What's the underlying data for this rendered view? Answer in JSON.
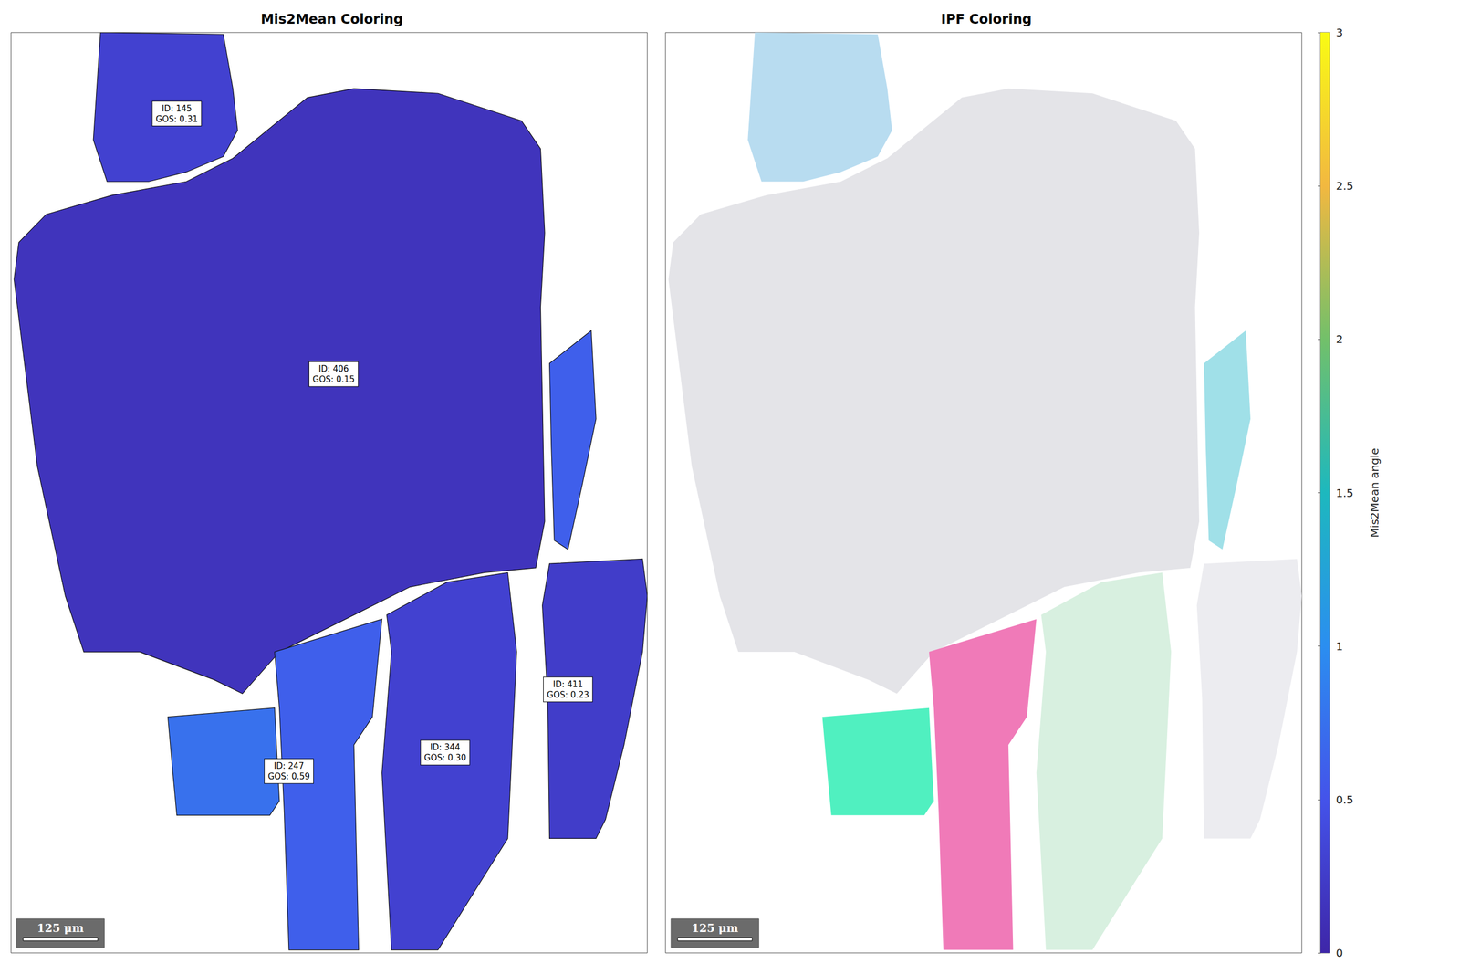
{
  "chart_data": {
    "type": "grain_map",
    "tick_labels": false,
    "xlim": [
      0,
      1067
    ],
    "ylim": [
      0,
      1544
    ],
    "panels": [
      {
        "title": "Mis2Mean Coloring",
        "coloring": "mis2mean"
      },
      {
        "title": "IPF Coloring",
        "coloring": "ipf"
      }
    ],
    "scale_bar": {
      "label": "125 μm",
      "length": 125
    },
    "colorbar": {
      "label": "Mis2Mean angle",
      "lim": [
        0,
        3
      ],
      "ticks": [
        0,
        0.5,
        1,
        1.5,
        2,
        2.5,
        3
      ]
    },
    "grains": [
      {
        "label": "ID: 145\nGOS: 0.31",
        "label_xy": [
          278,
          136
        ],
        "mis2mean": 0.3,
        "ipf_color": "#b8dcf0",
        "outline": [
          [
            150,
            0
          ],
          [
            356,
            3
          ],
          [
            372,
            94
          ],
          [
            380,
            164
          ],
          [
            356,
            208
          ],
          [
            294,
            234
          ],
          [
            231,
            250
          ],
          [
            161,
            250
          ],
          [
            138,
            180
          ]
        ]
      },
      {
        "label": "ID: 406\nGOS: 0.15",
        "label_xy": [
          541,
          573
        ],
        "mis2mean": 0.15,
        "ipf_color": "#e4e4e8",
        "outline": [
          [
            372,
            211
          ],
          [
            497,
            109
          ],
          [
            575,
            94
          ],
          [
            716,
            102
          ],
          [
            856,
            148
          ],
          [
            888,
            195
          ],
          [
            895,
            336
          ],
          [
            888,
            461
          ],
          [
            895,
            820
          ],
          [
            880,
            898
          ],
          [
            794,
            906
          ],
          [
            669,
            930
          ],
          [
            575,
            977
          ],
          [
            450,
            1039
          ],
          [
            388,
            1109
          ],
          [
            341,
            1086
          ],
          [
            216,
            1039
          ],
          [
            122,
            1039
          ],
          [
            91,
            945
          ],
          [
            44,
            727
          ],
          [
            5,
            414
          ],
          [
            13,
            352
          ],
          [
            59,
            305
          ],
          [
            169,
            273
          ],
          [
            294,
            250
          ]
        ]
      },
      {
        "label": null,
        "label_xy": null,
        "mis2mean": 0.6,
        "ipf_color": "#a0e0e8",
        "outline": [
          [
            903,
            555
          ],
          [
            973,
            500
          ],
          [
            981,
            648
          ],
          [
            958,
            758
          ],
          [
            934,
            867
          ],
          [
            911,
            852
          ],
          [
            906,
            695
          ]
        ]
      },
      {
        "label": null,
        "label_xy": null,
        "mis2mean": 0.75,
        "ipf_color": "#50f0c0",
        "outline": [
          [
            263,
            1148
          ],
          [
            442,
            1133
          ],
          [
            450,
            1289
          ],
          [
            434,
            1313
          ],
          [
            278,
            1313
          ],
          [
            270,
            1227
          ]
        ]
      },
      {
        "label": "ID: 247\nGOS: 0.59",
        "label_xy": [
          466,
          1239
        ],
        "mis2mean": 0.6,
        "ipf_color": "#f07ab8",
        "outline": [
          [
            442,
            1039
          ],
          [
            622,
            984
          ],
          [
            606,
            1148
          ],
          [
            575,
            1195
          ],
          [
            583,
            1539
          ],
          [
            466,
            1539
          ],
          [
            458,
            1305
          ],
          [
            450,
            1133
          ]
        ]
      },
      {
        "label": "ID: 344\nGOS: 0.30",
        "label_xy": [
          728,
          1208
        ],
        "mis2mean": 0.3,
        "ipf_color": "#d8f0e0",
        "outline": [
          [
            630,
            977
          ],
          [
            731,
            922
          ],
          [
            833,
            906
          ],
          [
            848,
            1039
          ],
          [
            833,
            1352
          ],
          [
            794,
            1414
          ],
          [
            716,
            1539
          ],
          [
            638,
            1539
          ],
          [
            622,
            1242
          ],
          [
            638,
            1039
          ]
        ]
      },
      {
        "label": "ID: 411\nGOS: 0.23",
        "label_xy": [
          934,
          1102
        ],
        "mis2mean": 0.25,
        "ipf_color": "#ececf0",
        "outline": [
          [
            903,
            891
          ],
          [
            1059,
            883
          ],
          [
            1067,
            945
          ],
          [
            1059,
            1039
          ],
          [
            1028,
            1195
          ],
          [
            997,
            1320
          ],
          [
            981,
            1352
          ],
          [
            903,
            1352
          ],
          [
            900,
            1117
          ],
          [
            891,
            961
          ]
        ]
      }
    ]
  }
}
